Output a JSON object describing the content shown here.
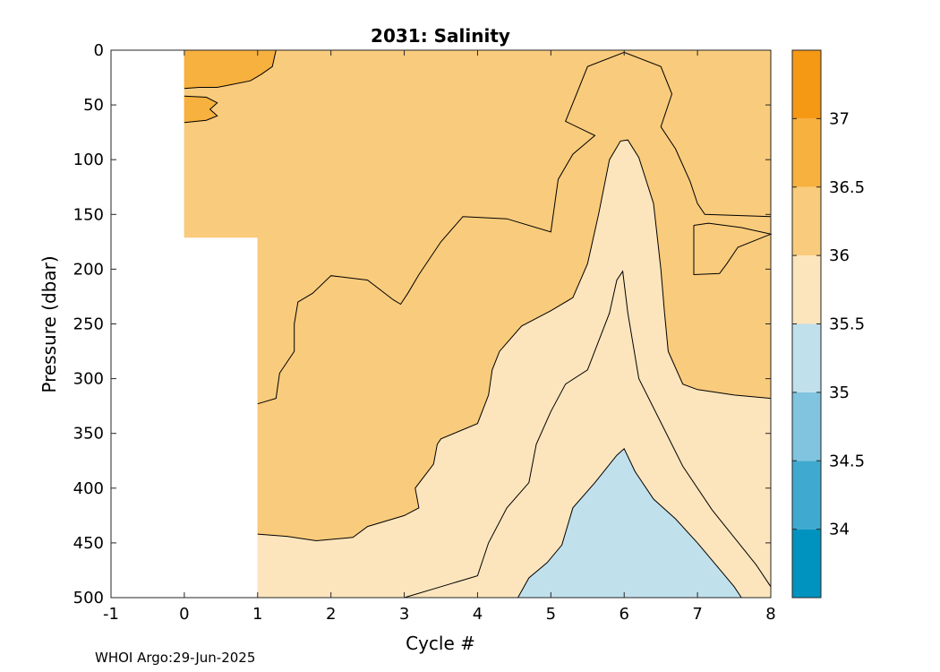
{
  "figure": {
    "footnote": "WHOI Argo:29-Jun-2025"
  },
  "chart_data": {
    "type": "contour",
    "title": "2031:  Salinity",
    "xlabel": "Cycle #",
    "ylabel": "Pressure (dbar)",
    "xlim": [
      -1,
      8
    ],
    "ylim": [
      0,
      500
    ],
    "y_reversed": true,
    "x_ticks": [
      -1,
      0,
      1,
      2,
      3,
      4,
      5,
      6,
      7,
      8
    ],
    "y_ticks": [
      0,
      50,
      100,
      150,
      200,
      250,
      300,
      350,
      400,
      450,
      500
    ],
    "colorbar": {
      "range": [
        33.5,
        37.5
      ],
      "tick_values": [
        34,
        34.5,
        35,
        35.5,
        36,
        36.5,
        37
      ],
      "tick_labels": [
        "34",
        "34.5",
        "35",
        "35.5",
        "36",
        "36.5",
        "37"
      ],
      "bands": [
        {
          "from": 33.5,
          "to": 34.0,
          "color": "#0193bf"
        },
        {
          "from": 34.0,
          "to": 34.5,
          "color": "#40a9d0"
        },
        {
          "from": 34.5,
          "to": 35.0,
          "color": "#80c4e0"
        },
        {
          "from": 35.0,
          "to": 35.5,
          "color": "#c0e0ec"
        },
        {
          "from": 35.5,
          "to": 36.0,
          "color": "#fce5bd"
        },
        {
          "from": 36.0,
          "to": 36.5,
          "color": "#f9cb7c"
        },
        {
          "from": 36.5,
          "to": 37.0,
          "color": "#f7b13e"
        },
        {
          "from": 37.0,
          "to": 37.5,
          "color": "#f59814"
        }
      ]
    },
    "regions": [
      {
        "level": "36.0-36.5",
        "color": "#f9cb7c",
        "points": [
          [
            0,
            0
          ],
          [
            8,
            0
          ],
          [
            8,
            500
          ],
          [
            1,
            500
          ],
          [
            1,
            171
          ],
          [
            0,
            171
          ]
        ]
      },
      {
        "level": "36.5-37.0",
        "color": "#f7b13e",
        "points": [
          [
            0,
            0
          ],
          [
            1.25,
            0
          ],
          [
            1.2,
            15
          ],
          [
            1.05,
            22
          ],
          [
            0.9,
            28
          ],
          [
            0.6,
            32
          ],
          [
            0.45,
            34
          ],
          [
            0.2,
            34
          ],
          [
            0,
            35
          ]
        ]
      },
      {
        "level": "36.5-37.0",
        "color": "#f7b13e",
        "points": [
          [
            0,
            42
          ],
          [
            0.3,
            43
          ],
          [
            0.45,
            48
          ],
          [
            0.35,
            54
          ],
          [
            0.45,
            60
          ],
          [
            0.3,
            64
          ],
          [
            0,
            66
          ]
        ]
      },
      {
        "level": "35.5-36.0",
        "color": "#fce5bd",
        "points": [
          [
            1,
            442
          ],
          [
            1.4,
            444
          ],
          [
            1.8,
            448
          ],
          [
            2.3,
            445
          ],
          [
            2.5,
            435
          ],
          [
            3.0,
            425
          ],
          [
            3.2,
            418
          ],
          [
            3.15,
            400
          ],
          [
            3.4,
            378
          ],
          [
            3.45,
            360
          ],
          [
            3.5,
            355
          ],
          [
            4.0,
            341
          ],
          [
            4.15,
            315
          ],
          [
            4.2,
            292
          ],
          [
            4.3,
            275
          ],
          [
            4.6,
            252
          ],
          [
            5.0,
            238
          ],
          [
            5.3,
            226
          ],
          [
            5.5,
            195
          ],
          [
            5.65,
            150
          ],
          [
            5.8,
            100
          ],
          [
            5.95,
            83
          ],
          [
            6.05,
            82
          ],
          [
            6.2,
            98
          ],
          [
            6.4,
            140
          ],
          [
            6.5,
            200
          ],
          [
            6.55,
            240
          ],
          [
            6.6,
            275
          ],
          [
            6.8,
            305
          ],
          [
            7.0,
            310
          ],
          [
            7.5,
            315
          ],
          [
            8,
            318
          ],
          [
            8,
            500
          ],
          [
            1,
            500
          ]
        ]
      },
      {
        "level": "35.0-35.5",
        "color": "#c0e0ec",
        "points": [
          [
            4.55,
            500
          ],
          [
            4.7,
            482
          ],
          [
            4.95,
            468
          ],
          [
            5.15,
            452
          ],
          [
            5.3,
            418
          ],
          [
            5.6,
            395
          ],
          [
            5.9,
            370
          ],
          [
            6.0,
            364
          ],
          [
            6.15,
            385
          ],
          [
            6.4,
            410
          ],
          [
            6.7,
            428
          ],
          [
            7.0,
            450
          ],
          [
            7.3,
            474
          ],
          [
            7.5,
            490
          ],
          [
            7.6,
            500
          ]
        ]
      }
    ],
    "contours": [
      {
        "level": 36.5,
        "points": [
          [
            0,
            35
          ],
          [
            0.2,
            34
          ],
          [
            0.45,
            34
          ],
          [
            0.6,
            32
          ],
          [
            0.9,
            28
          ],
          [
            1.05,
            22
          ],
          [
            1.2,
            15
          ],
          [
            1.25,
            0
          ]
        ]
      },
      {
        "level": 36.5,
        "points": [
          [
            0,
            42
          ],
          [
            0.3,
            43
          ],
          [
            0.45,
            48
          ],
          [
            0.35,
            54
          ],
          [
            0.45,
            60
          ],
          [
            0.3,
            64
          ],
          [
            0,
            66
          ]
        ]
      },
      {
        "level": 36.0,
        "points": [
          [
            1,
            323
          ],
          [
            1.25,
            318
          ],
          [
            1.3,
            295
          ],
          [
            1.5,
            275
          ],
          [
            1.5,
            250
          ],
          [
            1.55,
            230
          ],
          [
            1.75,
            222
          ],
          [
            2.0,
            206
          ],
          [
            2.5,
            210
          ],
          [
            2.85,
            228
          ],
          [
            2.95,
            232
          ],
          [
            3.05,
            222
          ],
          [
            3.2,
            205
          ],
          [
            3.5,
            175
          ],
          [
            3.8,
            152
          ],
          [
            4.4,
            154
          ],
          [
            5.0,
            166
          ],
          [
            5.1,
            118
          ],
          [
            5.3,
            95
          ],
          [
            5.6,
            78
          ],
          [
            5.2,
            65
          ],
          [
            5.35,
            40
          ],
          [
            5.5,
            15
          ],
          [
            6.0,
            2
          ],
          [
            6.5,
            15
          ],
          [
            6.65,
            40
          ],
          [
            6.5,
            70
          ],
          [
            6.7,
            90
          ],
          [
            6.9,
            120
          ],
          [
            7.0,
            140
          ],
          [
            7.1,
            150
          ],
          [
            8,
            152
          ]
        ]
      },
      {
        "level": 36.0,
        "points": [
          [
            6.95,
            160
          ],
          [
            7.15,
            158
          ],
          [
            7.6,
            162
          ],
          [
            8,
            168
          ],
          [
            7.55,
            180
          ],
          [
            7.4,
            195
          ],
          [
            7.3,
            204
          ],
          [
            6.95,
            205
          ],
          [
            6.95,
            185
          ],
          [
            6.95,
            160
          ]
        ]
      },
      {
        "level": 35.5,
        "points": [
          [
            1,
            442
          ],
          [
            1.4,
            444
          ],
          [
            1.8,
            448
          ],
          [
            2.3,
            445
          ],
          [
            2.5,
            435
          ],
          [
            3.0,
            425
          ],
          [
            3.2,
            418
          ],
          [
            3.15,
            400
          ],
          [
            3.4,
            378
          ],
          [
            3.45,
            360
          ],
          [
            3.5,
            355
          ],
          [
            4.0,
            341
          ],
          [
            4.15,
            315
          ],
          [
            4.2,
            292
          ],
          [
            4.3,
            275
          ],
          [
            4.6,
            252
          ],
          [
            5.0,
            238
          ],
          [
            5.3,
            226
          ],
          [
            5.5,
            195
          ],
          [
            5.65,
            150
          ],
          [
            5.8,
            100
          ],
          [
            5.95,
            83
          ],
          [
            6.05,
            82
          ],
          [
            6.2,
            98
          ],
          [
            6.4,
            140
          ],
          [
            6.5,
            200
          ],
          [
            6.55,
            240
          ],
          [
            6.6,
            275
          ],
          [
            6.8,
            305
          ],
          [
            7.0,
            310
          ],
          [
            7.5,
            315
          ],
          [
            8,
            318
          ]
        ]
      },
      {
        "level": 35.5,
        "points": [
          [
            3.0,
            500
          ],
          [
            3.5,
            490
          ],
          [
            4.0,
            480
          ],
          [
            4.15,
            450
          ],
          [
            4.4,
            418
          ],
          [
            4.7,
            395
          ],
          [
            4.8,
            360
          ],
          [
            5.0,
            330
          ],
          [
            5.2,
            305
          ],
          [
            5.5,
            292
          ],
          [
            5.8,
            240
          ],
          [
            5.9,
            210
          ],
          [
            5.98,
            202
          ],
          [
            6.05,
            240
          ],
          [
            6.2,
            300
          ],
          [
            6.5,
            340
          ],
          [
            6.8,
            380
          ],
          [
            7.2,
            420
          ],
          [
            7.5,
            445
          ],
          [
            7.8,
            470
          ],
          [
            8,
            490
          ]
        ]
      },
      {
        "level": 35.0,
        "points": [
          [
            4.55,
            500
          ],
          [
            4.7,
            482
          ],
          [
            4.95,
            468
          ],
          [
            5.15,
            452
          ],
          [
            5.3,
            418
          ],
          [
            5.6,
            395
          ],
          [
            5.9,
            370
          ],
          [
            6.0,
            364
          ],
          [
            6.15,
            385
          ],
          [
            6.4,
            410
          ],
          [
            6.7,
            428
          ],
          [
            7.0,
            450
          ],
          [
            7.3,
            474
          ],
          [
            7.5,
            490
          ],
          [
            7.6,
            500
          ]
        ]
      }
    ]
  }
}
